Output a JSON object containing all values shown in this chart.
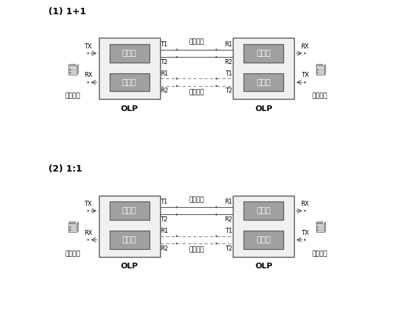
{
  "bg_color": "#ffffff",
  "title1": "(1) 1+1",
  "title2": "(2) 1:1",
  "olp_label": "OLP",
  "tx_label": "TX",
  "rx_label": "RX",
  "main_route": "主路路由",
  "backup_route": "备路路由",
  "transport_device": "传输设备",
  "fenguangqi": "分光器",
  "guangkaiguan": "光开关",
  "box_fill": "#a0a0a0",
  "box_edge": "#555555",
  "olp_box_fill": "#f0f0f0",
  "olp_box_edge": "#555555",
  "arrow_color": "#555555",
  "solid_line": "#555555",
  "dashed_line": "#888888",
  "font_size_title": 9,
  "font_size_label": 7,
  "font_size_box": 8,
  "font_size_olp": 8
}
